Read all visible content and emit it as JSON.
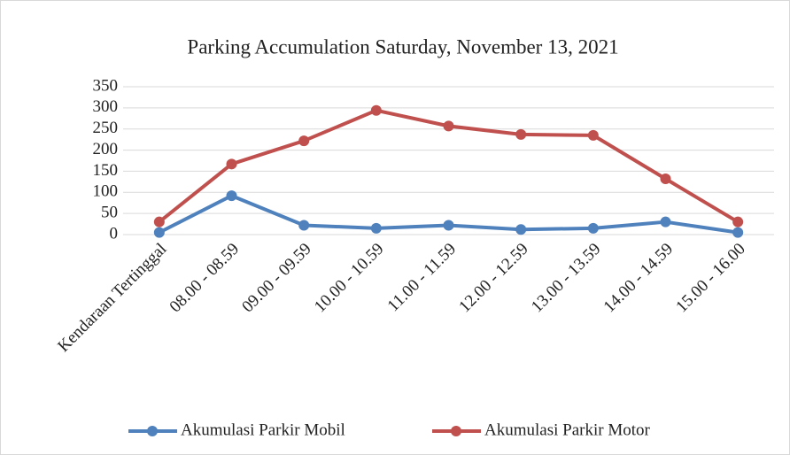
{
  "chart_data": {
    "type": "line",
    "title": "Parking Accumulation Saturday, November 13, 2021",
    "categories": [
      "Kendaraan Tertinggal",
      "08.00 - 08.59",
      "09.00 - 09.59",
      "10.00 - 10.59",
      "11.00 - 11.59",
      "12.00 - 12.59",
      "13.00 - 13.59",
      "14.00 - 14.59",
      "15.00 - 16.00"
    ],
    "series": [
      {
        "name": "Akumulasi Parkir Mobil",
        "color": "#4f81bd",
        "values": [
          5,
          92,
          22,
          15,
          22,
          12,
          15,
          30,
          5
        ]
      },
      {
        "name": "Akumulasi Parkir Motor",
        "color": "#c0504d",
        "values": [
          30,
          167,
          222,
          294,
          257,
          237,
          235,
          132,
          30
        ]
      }
    ],
    "ylim": [
      0,
      350
    ],
    "yticks": [
      0,
      50,
      100,
      150,
      200,
      250,
      300,
      350
    ],
    "grid": true,
    "legend": "bottom"
  }
}
